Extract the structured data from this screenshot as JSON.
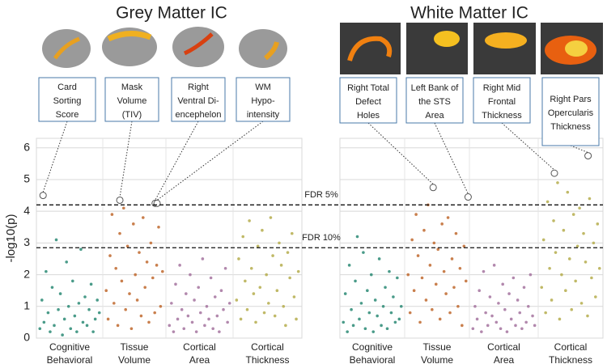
{
  "chart_data": [
    {
      "type": "scatter",
      "title": "Grey Matter IC",
      "ylabel": "-log10(p)",
      "categories": [
        "Cognitive Behavioral",
        "Tissue Volume",
        "Cortical Area",
        "Cortical Thickness"
      ],
      "ylim": [
        0,
        6.3
      ],
      "yticks": [
        0,
        1,
        2,
        3,
        4,
        5,
        6
      ],
      "grid": true,
      "thresholds": [
        {
          "label": "FDR 5%",
          "value": 4.2
        },
        {
          "label": "FDR 10%",
          "value": 2.85
        }
      ],
      "series": [
        {
          "color": "#2a8a74",
          "values": [
            0.3,
            1.2,
            0.5,
            2.1,
            0.8,
            0.2,
            1.6,
            0.4,
            3.1,
            0.9,
            1.4,
            0.1,
            0.6,
            2.4,
            1.0,
            0.3,
            1.8,
            0.7,
            0.2,
            1.1,
            2.8,
            0.5,
            1.3,
            0.4,
            0.9,
            1.7,
            0.2,
            0.6,
            1.2,
            0.8
          ]
        },
        {
          "color": "#c0692e",
          "values": [
            1.5,
            0.6,
            2.6,
            3.9,
            1.1,
            2.2,
            0.4,
            3.3,
            1.8,
            4.1,
            0.9,
            2.9,
            1.4,
            0.3,
            3.6,
            2.0,
            1.2,
            2.7,
            0.7,
            3.8,
            1.6,
            2.4,
            0.5,
            3.0,
            1.9,
            0.8,
            2.3,
            3.5,
            1.0,
            2.1
          ]
        },
        {
          "color": "#a5739f",
          "values": [
            0.4,
            1.1,
            0.2,
            1.7,
            0.6,
            2.3,
            0.9,
            0.3,
            1.4,
            0.7,
            2.0,
            0.5,
            1.2,
            0.2,
            1.6,
            0.8,
            2.5,
            0.4,
            1.0,
            0.6,
            1.9,
            0.3,
            1.3,
            0.7,
            0.2,
            1.5,
            0.9,
            2.2,
            0.5,
            1.1
          ]
        },
        {
          "color": "#b5ad4c",
          "values": [
            1.2,
            2.5,
            0.6,
            3.2,
            1.8,
            0.9,
            3.7,
            2.2,
            1.4,
            0.5,
            2.9,
            1.6,
            3.4,
            0.8,
            2.0,
            1.1,
            3.8,
            2.6,
            0.7,
            1.5,
            3.0,
            2.3,
            1.0,
            0.4,
            2.7,
            1.9,
            3.3,
            1.3,
            0.6,
            2.1
          ]
        }
      ],
      "annotations": [
        {
          "lines": [
            "Card",
            "Sorting",
            "Score"
          ],
          "category": 0,
          "value": 4.5
        },
        {
          "lines": [
            "Mask",
            "Volume",
            "(TIV)"
          ],
          "category": 1,
          "value": 4.35
        },
        {
          "lines": [
            "Right",
            "Ventral Di-",
            "encephelon"
          ],
          "category": 1,
          "value": 4.25
        },
        {
          "lines": [
            "WM",
            "Hypo-",
            "intensity"
          ],
          "category": 1,
          "value": 4.25
        }
      ]
    },
    {
      "type": "scatter",
      "title": "White Matter IC",
      "categories": [
        "Cognitive Behavioral",
        "Tissue Volume",
        "Cortical Area",
        "Cortical Thickness"
      ],
      "ylim": [
        0,
        6.3
      ],
      "yticks": [
        0,
        1,
        2,
        3,
        4,
        5,
        6
      ],
      "grid": true,
      "series": [
        {
          "color": "#2a8a74",
          "values": [
            0.5,
            1.4,
            0.2,
            2.3,
            0.9,
            0.4,
            1.8,
            3.2,
            0.6,
            1.1,
            2.7,
            0.3,
            1.5,
            0.8,
            2.0,
            0.2,
            1.2,
            0.7,
            2.5,
            0.4,
            1.0,
            1.6,
            0.3,
            2.1,
            0.8,
            1.3,
            0.5,
            1.9,
            0.6,
            1.0
          ]
        },
        {
          "color": "#c0692e",
          "values": [
            2.0,
            0.8,
            3.1,
            1.5,
            3.9,
            2.6,
            0.5,
            1.9,
            3.4,
            1.2,
            4.2,
            2.3,
            0.9,
            3.0,
            1.7,
            2.8,
            0.6,
            3.6,
            2.1,
            1.4,
            3.8,
            0.8,
            2.5,
            1.6,
            3.3,
            1.0,
            2.2,
            0.4,
            2.9,
            1.8
          ]
        },
        {
          "color": "#a5739f",
          "values": [
            0.3,
            1.0,
            0.6,
            1.5,
            0.2,
            2.1,
            0.8,
            0.4,
            1.3,
            0.7,
            2.3,
            0.5,
            1.1,
            0.3,
            1.7,
            0.9,
            0.2,
            1.4,
            0.6,
            1.9,
            0.4,
            1.2,
            0.8,
            0.3,
            1.6,
            0.5,
            1.0,
            2.0,
            0.7,
            0.4
          ]
        },
        {
          "color": "#b5ad4c",
          "values": [
            1.6,
            3.1,
            0.8,
            4.3,
            2.2,
            1.2,
            3.7,
            2.7,
            4.9,
            0.6,
            2.0,
            3.4,
            1.5,
            4.6,
            2.5,
            0.9,
            3.9,
            1.8,
            2.9,
            4.1,
            1.1,
            3.3,
            2.4,
            0.7,
            4.4,
            1.9,
            3.0,
            1.3,
            3.6,
            2.2
          ]
        }
      ],
      "annotations": [
        {
          "lines": [
            "Right Total",
            "Defect",
            "Holes"
          ],
          "category": 1,
          "value": 4.75
        },
        {
          "lines": [
            "Left Bank of",
            "the STS",
            "Area"
          ],
          "category": 1,
          "value": 4.45
        },
        {
          "lines": [
            "Right Mid",
            "Frontal",
            "Thickness"
          ],
          "category": 3,
          "value": 5.2
        },
        {
          "lines": [
            "Right Pars",
            "Opercularis",
            "Thickness"
          ],
          "category": 3,
          "value": 5.75
        }
      ]
    }
  ]
}
